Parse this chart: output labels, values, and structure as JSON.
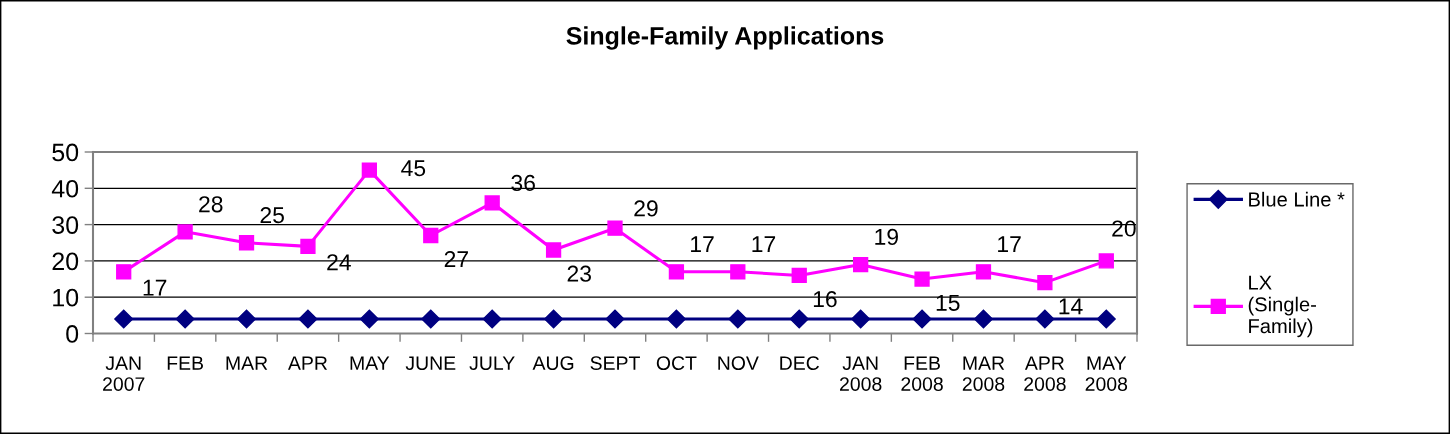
{
  "chart_data": {
    "type": "line",
    "title": "Single-Family Applications",
    "categories": [
      "JAN\n2007",
      "FEB",
      "MAR",
      "APR",
      "MAY",
      "JUNE",
      "JULY",
      "AUG",
      "SEPT",
      "OCT",
      "NOV",
      "DEC",
      "JAN\n2008",
      "FEB\n2008",
      "MAR\n2008",
      "APR\n2008",
      "MAY\n2008"
    ],
    "series": [
      {
        "name": "Blue Line *",
        "color": "#000080",
        "marker": "diamond",
        "values": [
          4,
          4,
          4,
          4,
          4,
          4,
          4,
          4,
          4,
          4,
          4,
          4,
          4,
          4,
          4,
          4,
          4
        ]
      },
      {
        "name": "LX\n(Single-\nFamily)",
        "color": "#ff00ff",
        "marker": "square",
        "values": [
          17,
          28,
          25,
          24,
          45,
          27,
          36,
          23,
          29,
          17,
          17,
          16,
          19,
          15,
          17,
          14,
          20
        ],
        "value_labels": [
          "17",
          "28",
          "25",
          "24",
          "45",
          "27",
          "36",
          "23",
          "29",
          "17",
          "17",
          "16",
          "19",
          "15",
          "17",
          "14",
          "20"
        ]
      }
    ],
    "ylim": [
      0,
      50
    ],
    "yticks": [
      0,
      10,
      20,
      30,
      40,
      50
    ],
    "grid": "y",
    "legend": "right"
  }
}
